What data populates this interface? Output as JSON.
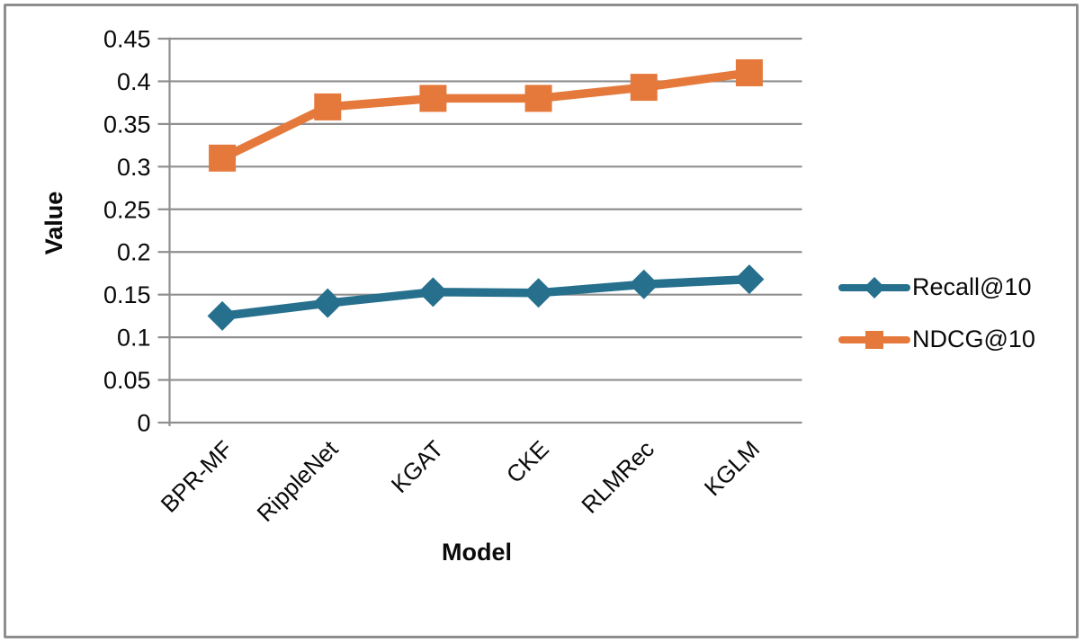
{
  "chart_data": {
    "type": "line",
    "title": "",
    "xlabel": "Model",
    "ylabel": "Value",
    "categories": [
      "BPR-MF",
      "RippleNet",
      "KGAT",
      "CKE",
      "RLMRec",
      "KGLM"
    ],
    "series": [
      {
        "name": "Recall@10",
        "marker": "diamond",
        "color": "#26708e",
        "values": [
          0.125,
          0.14,
          0.153,
          0.152,
          0.162,
          0.168
        ]
      },
      {
        "name": "NDCG@10",
        "marker": "square",
        "color": "#e5793c",
        "values": [
          0.31,
          0.37,
          0.38,
          0.38,
          0.393,
          0.41
        ]
      }
    ],
    "ylim": [
      0,
      0.45
    ],
    "ytick_step": 0.05,
    "ytick_labels": [
      "0",
      "0.05",
      "0.1",
      "0.15",
      "0.2",
      "0.25",
      "0.3",
      "0.35",
      "0.4",
      "0.45"
    ],
    "grid": "horizontal",
    "gridline_color": "#8f8f8f",
    "axis_color": "#8f8f8f",
    "frame_border_color": "#8e8e8e",
    "text_color": "#0a0a0a",
    "legend_position": "right-middle"
  }
}
